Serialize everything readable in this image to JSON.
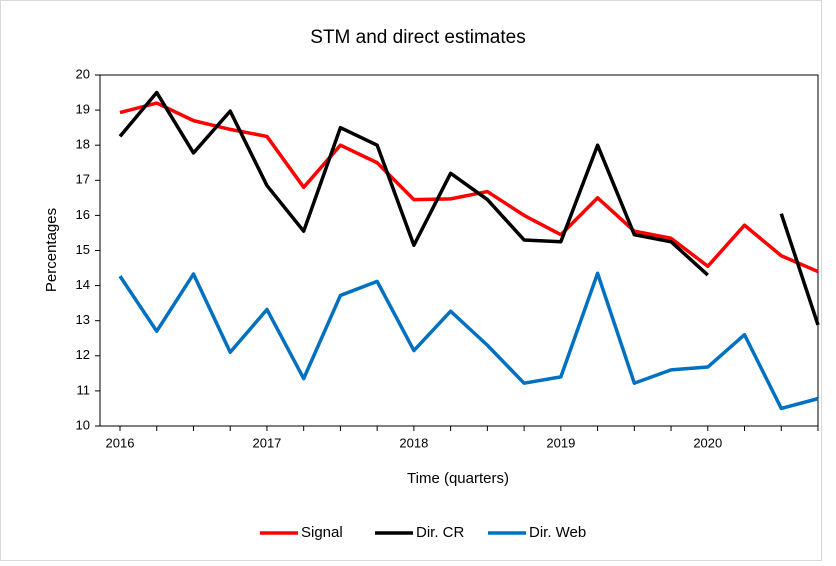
{
  "chart_data": {
    "type": "line",
    "title": "STM and direct estimates",
    "x_label": "Time (quarters)",
    "y_label": "Percentages",
    "categories": [
      "2016",
      null,
      null,
      null,
      "2017",
      null,
      null,
      null,
      "2018",
      null,
      null,
      null,
      "2019",
      null,
      null,
      null,
      "2020",
      null,
      null,
      null
    ],
    "series": [
      {
        "name": "Signal",
        "color": "#ff0000",
        "values": [
          18.93,
          19.2,
          18.7,
          18.45,
          18.25,
          16.8,
          18.0,
          17.5,
          16.45,
          16.47,
          16.68,
          16.0,
          15.45,
          16.5,
          15.55,
          15.35,
          14.55,
          15.72,
          14.85,
          14.4
        ]
      },
      {
        "name": "Dir. CR",
        "color": "#000000",
        "values": [
          18.25,
          19.5,
          17.78,
          18.97,
          16.85,
          15.55,
          18.5,
          18.0,
          15.15,
          17.2,
          16.45,
          15.3,
          15.25,
          18.0,
          15.45,
          15.25,
          14.3,
          null,
          16.05,
          12.88
        ]
      },
      {
        "name": "Dir. Web",
        "color": "#0070c0",
        "values": [
          14.27,
          12.7,
          14.33,
          12.1,
          13.32,
          11.35,
          13.72,
          14.12,
          12.15,
          13.27,
          12.3,
          11.22,
          11.4,
          14.35,
          11.22,
          11.6,
          11.68,
          12.6,
          10.5,
          10.78
        ]
      }
    ],
    "ylim": [
      10,
      20
    ],
    "yticks": [
      10,
      11,
      12,
      13,
      14,
      15,
      16,
      17,
      18,
      19,
      20
    ],
    "grid": false,
    "legend": "bottom"
  }
}
